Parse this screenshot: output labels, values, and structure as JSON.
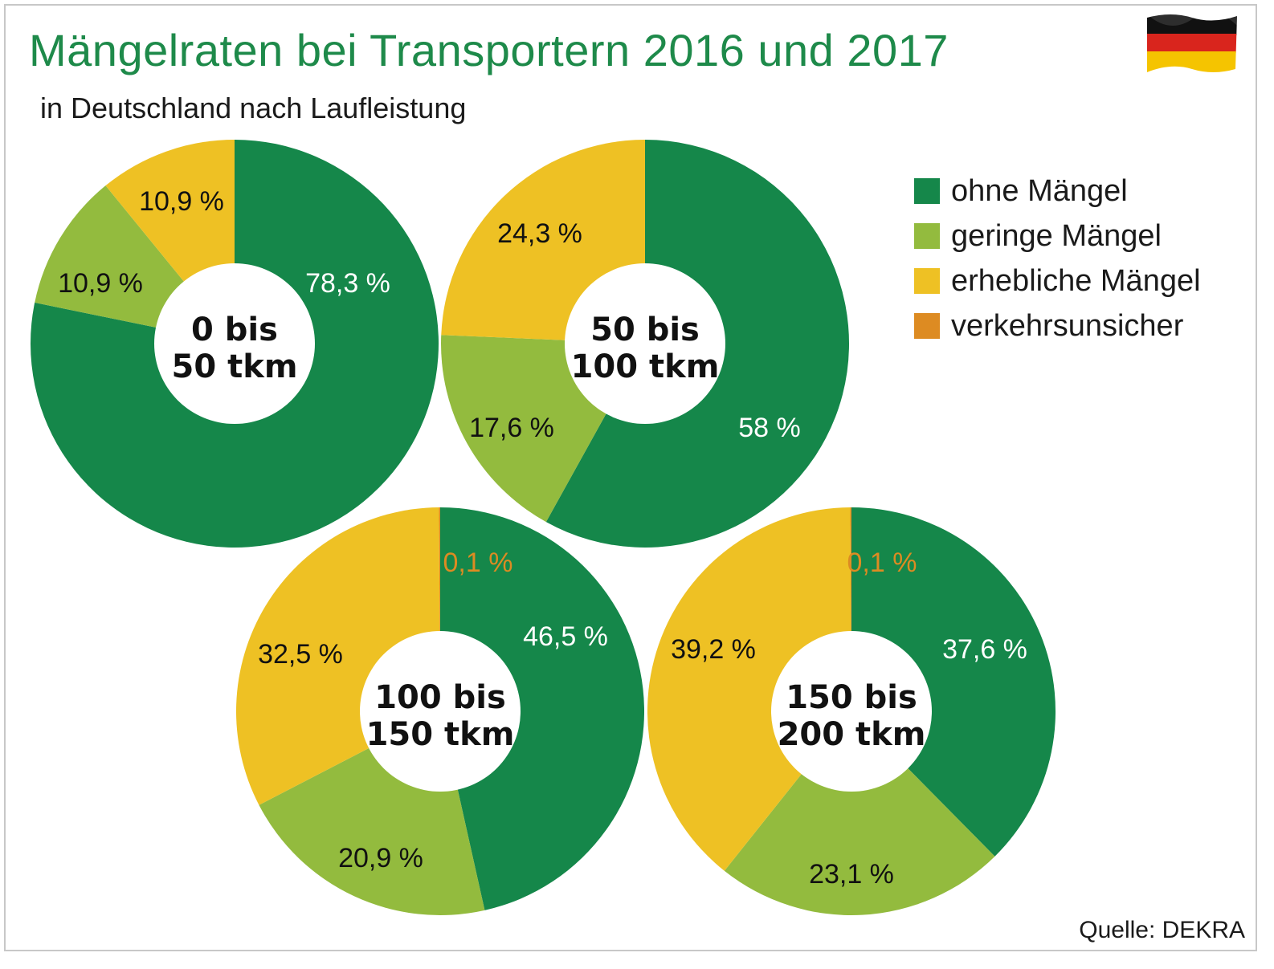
{
  "header": {
    "title": "Mängelraten bei Transportern 2016 und 2017",
    "subtitle": "in Deutschland nach Laufleistung"
  },
  "source": "Quelle: DEKRA",
  "colors": {
    "ohne": "#15874a",
    "gering": "#93bb3e",
    "erheblich": "#eec124",
    "unsicher": "#dd8b22"
  },
  "legend": [
    {
      "label": "ohne Mängel",
      "color": "#15874a"
    },
    {
      "label": "geringe Mängel",
      "color": "#93bb3e"
    },
    {
      "label": "erhebliche Mängel",
      "color": "#eec124"
    },
    {
      "label": "verkehrsunsicher",
      "color": "#dd8b22"
    }
  ],
  "chart_data": [
    {
      "type": "pie",
      "title": "0 bis 50 tkm",
      "center_lines": [
        "0 bis",
        "50 tkm"
      ],
      "categories": [
        "ohne Mängel",
        "geringe Mängel",
        "erhebliche Mängel"
      ],
      "values": [
        78.3,
        10.9,
        10.9
      ],
      "labels": [
        "78,3 %",
        "10,9 %",
        "10,9 %"
      ]
    },
    {
      "type": "pie",
      "title": "50 bis 100 tkm",
      "center_lines": [
        "50 bis",
        "100 tkm"
      ],
      "categories": [
        "ohne Mängel",
        "geringe Mängel",
        "erhebliche Mängel"
      ],
      "values": [
        58,
        17.6,
        24.3
      ],
      "labels": [
        "58 %",
        "17,6 %",
        "24,3 %"
      ]
    },
    {
      "type": "pie",
      "title": "100 bis 150 tkm",
      "center_lines": [
        "100 bis",
        "150 tkm"
      ],
      "categories": [
        "ohne Mängel",
        "geringe Mängel",
        "erhebliche Mängel",
        "verkehrsunsicher"
      ],
      "values": [
        46.5,
        20.9,
        32.5,
        0.1
      ],
      "labels": [
        "46,5 %",
        "20,9 %",
        "32,5 %",
        "0,1 %"
      ]
    },
    {
      "type": "pie",
      "title": "150 bis 200 tkm",
      "center_lines": [
        "150 bis",
        "200 tkm"
      ],
      "categories": [
        "ohne Mängel",
        "geringe Mängel",
        "erhebliche Mängel",
        "verkehrsunsicher"
      ],
      "values": [
        37.6,
        23.1,
        39.2,
        0.1
      ],
      "labels": [
        "37,6 %",
        "23,1 %",
        "39,2 %",
        "0,1 %"
      ]
    }
  ]
}
